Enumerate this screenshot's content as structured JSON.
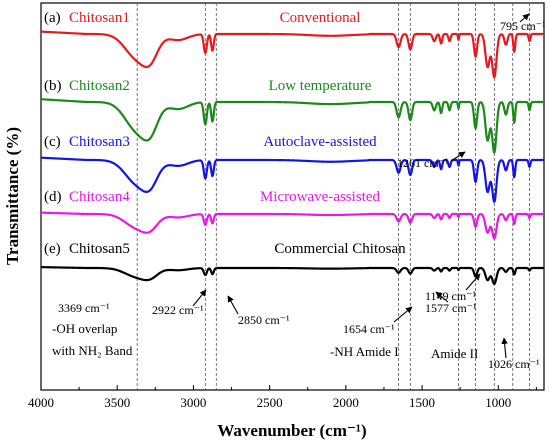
{
  "chart_data": {
    "type": "line",
    "xlabel": "Wavenumber (cm⁻¹)",
    "ylabel": "Transmittance (%)",
    "xlim": [
      4000,
      700
    ],
    "x_reversed": true,
    "x_ticks": [
      {
        "value": 4000,
        "label": "4000"
      },
      {
        "value": 3500,
        "label": "3500"
      },
      {
        "value": 3000,
        "label": "3000"
      },
      {
        "value": 2500,
        "label": "2500"
      },
      {
        "value": 2000,
        "label": "2000"
      },
      {
        "value": 1500,
        "label": "1500"
      },
      {
        "value": 1000,
        "label": "1000"
      }
    ],
    "grid": false,
    "y_tick_labels": false,
    "series": [
      {
        "id": "a",
        "tag": "(a)",
        "name": "Chitosan1",
        "method": "Conventional",
        "color": "#e8191e",
        "offset": 0
      },
      {
        "id": "b",
        "tag": "(b)",
        "name": "Chitosan2",
        "method": "Low temperature",
        "color": "#1a8a1a",
        "offset": 1
      },
      {
        "id": "c",
        "tag": "(c)",
        "name": "Chitosan3",
        "method": "Autoclave-assisted",
        "color": "#1414e6",
        "offset": 2
      },
      {
        "id": "d",
        "tag": "(d)",
        "name": "Chitosan4",
        "method": "Microwave-assisted",
        "color": "#e619e6",
        "offset": 3
      },
      {
        "id": "e",
        "tag": "(e)",
        "name": "Chitosan5",
        "method": "Commercial Chitosan",
        "color": "#000000",
        "offset": 4
      }
    ],
    "reference_lines": [
      3369,
      2922,
      2850,
      1654,
      1577,
      1261,
      1149,
      1026,
      905,
      795
    ],
    "annotations": [
      {
        "id": "a3369",
        "text": "3369 cm⁻¹",
        "x": 3369
      },
      {
        "id": "aoh",
        "text": "-OH overlap",
        "x": 3369
      },
      {
        "id": "anh2",
        "text": "with NH₂ Band",
        "x": 3369
      },
      {
        "id": "a2922",
        "text": "2922 cm⁻¹",
        "x": 2922
      },
      {
        "id": "a2850",
        "text": "2850 cm⁻¹",
        "x": 2850
      },
      {
        "id": "a1654",
        "text": "1654 cm⁻¹",
        "x": 1654
      },
      {
        "id": "anhamide",
        "text": "-NH Amide I",
        "x": 1654
      },
      {
        "id": "a1577",
        "text": "1577 cm⁻¹",
        "x": 1577
      },
      {
        "id": "aamide2",
        "text": "Amide II",
        "x": 1577
      },
      {
        "id": "a1261",
        "text": "1261 cm⁻¹",
        "x": 1261
      },
      {
        "id": "a1149",
        "text": "1149 cm⁻¹",
        "x": 1149
      },
      {
        "id": "a1026",
        "text": "1026 cm⁻¹",
        "x": 1026
      },
      {
        "id": "a795",
        "text": "795 cm⁻¹",
        "x": 795
      }
    ]
  }
}
